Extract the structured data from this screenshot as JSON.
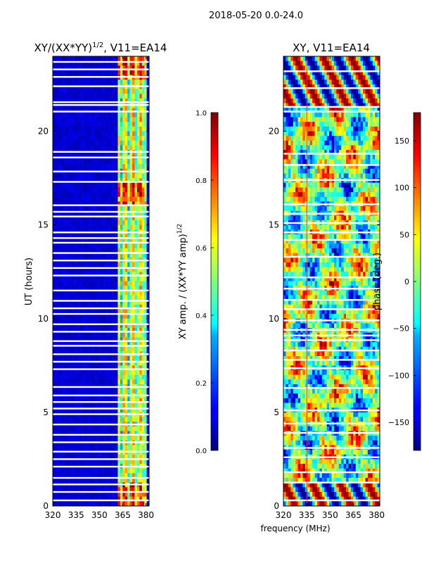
{
  "figure": {
    "suptitle": "2018-05-20 0.0-24.0",
    "xlabel_shared": "frequency (MHz)"
  },
  "chart_data": [
    {
      "type": "heatmap",
      "title": "XY/(XX*YY)^1/2, V11=EA14",
      "title_parts": {
        "base": "XY/(XX*YY)",
        "sup": "1/2",
        "suffix": ", V11=EA14"
      },
      "ylabel": "UT (hours)",
      "xlim": [
        320,
        382
      ],
      "ylim": [
        0,
        24
      ],
      "xticks": [
        "320",
        "335",
        "350",
        "365",
        "380"
      ],
      "xtick_values": [
        320,
        335,
        350,
        365,
        380
      ],
      "yticks": [
        "0",
        "5",
        "10",
        "15",
        "20"
      ],
      "ytick_values": [
        0,
        5,
        10,
        15,
        20
      ],
      "colorbar": {
        "label": "XY amp. / (XX*YY amp)^1/2",
        "label_parts": {
          "base": "XY amp. / (XX*YY amp)",
          "sup": "1/2"
        },
        "range": [
          0.0,
          1.0
        ],
        "ticks": [
          "0.0",
          "0.2",
          "0.4",
          "0.6",
          "0.8",
          "1.0"
        ],
        "tick_values": [
          0.0,
          0.2,
          0.4,
          0.6,
          0.8,
          1.0
        ]
      },
      "colormap": "jet",
      "description_values": {
        "background_level": 0.05,
        "active_band_mhz": [
          362,
          381
        ],
        "active_level": 0.55,
        "peak_level": 0.85
      },
      "gaps_ut_hours": [
        0.3,
        0.75,
        1.15,
        1.5,
        2.1,
        2.5,
        2.9,
        3.4,
        3.8,
        4.35,
        4.9,
        5.2,
        5.55,
        5.9,
        6.35,
        7.3,
        7.7,
        8.1,
        8.55,
        8.8,
        9.3,
        9.7,
        10.25,
        10.55,
        10.95,
        11.5,
        12.3,
        12.7,
        13.1,
        13.5,
        14.05,
        14.3,
        14.6,
        15.45,
        15.7,
        16.05,
        17.3,
        17.85,
        18.6,
        18.9,
        21.05,
        21.4,
        21.55,
        22.4,
        22.9,
        23.3,
        23.7
      ]
    },
    {
      "type": "heatmap",
      "title": "XY, V11=EA14",
      "ylabel": "",
      "xlim": [
        320,
        382
      ],
      "ylim": [
        0,
        24
      ],
      "xticks": [
        "320",
        "335",
        "350",
        "365",
        "380"
      ],
      "xtick_values": [
        320,
        335,
        350,
        365,
        380
      ],
      "yticks": [
        "0",
        "5",
        "10",
        "15",
        "20"
      ],
      "ytick_values": [
        0,
        5,
        10,
        15,
        20
      ],
      "colorbar": {
        "label": "phase (deg.)",
        "range": [
          -180,
          180
        ],
        "ticks": [
          "−150",
          "−100",
          "−50",
          "0",
          "50",
          "100",
          "150"
        ],
        "tick_values": [
          -150,
          -100,
          -50,
          0,
          50,
          100,
          150
        ]
      },
      "colormap": "jet",
      "marker_line_mhz": 335,
      "gaps_ut_hours": [
        0.3,
        1.25,
        1.8,
        2.6,
        3.1,
        3.9,
        4.4,
        5.1,
        6.3,
        7.35,
        7.8,
        8.3,
        8.85,
        9.1,
        9.4,
        9.9,
        10.5,
        11.0,
        11.6,
        12.2,
        13.3,
        14.2,
        14.6,
        15.1,
        15.6,
        16.1,
        17.4,
        18.2,
        18.8,
        21.05,
        21.3,
        22.3,
        23.2
      ]
    }
  ]
}
